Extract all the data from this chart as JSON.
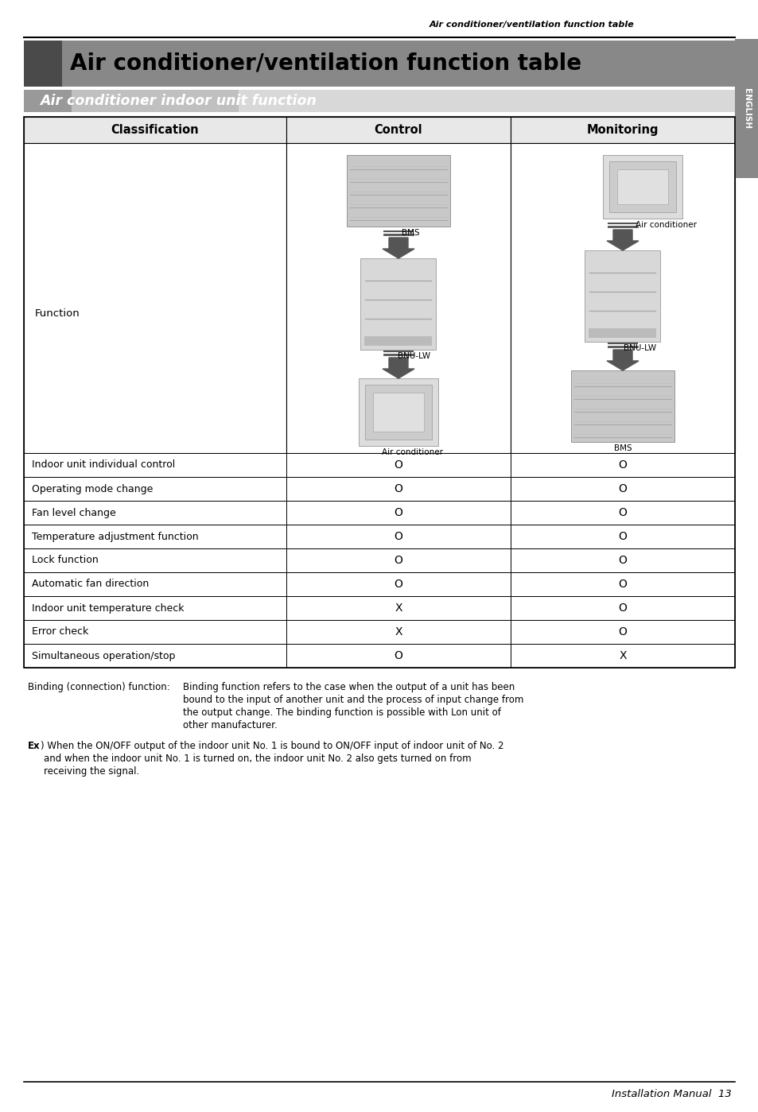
{
  "page_title": "Air conditioner/ventilation function table",
  "main_title": "Air conditioner/ventilation function table",
  "subtitle": "Air conditioner indoor unit function",
  "tab_label": "ENGLISH",
  "table_headers": [
    "Classification",
    "Control",
    "Monitoring"
  ],
  "table_rows": [
    [
      "Indoor unit individual control",
      "O",
      "O"
    ],
    [
      "Operating mode change",
      "O",
      "O"
    ],
    [
      "Fan level change",
      "O",
      "O"
    ],
    [
      "Temperature adjustment function",
      "O",
      "O"
    ],
    [
      "Lock function",
      "O",
      "O"
    ],
    [
      "Automatic fan direction",
      "O",
      "O"
    ],
    [
      "Indoor unit temperature check",
      "X",
      "O"
    ],
    [
      "Error check",
      "X",
      "O"
    ],
    [
      "Simultaneous operation/stop",
      "O",
      "X"
    ]
  ],
  "function_label": "Function",
  "footer_text": "Installation Manual  13",
  "background_color": "#ffffff"
}
